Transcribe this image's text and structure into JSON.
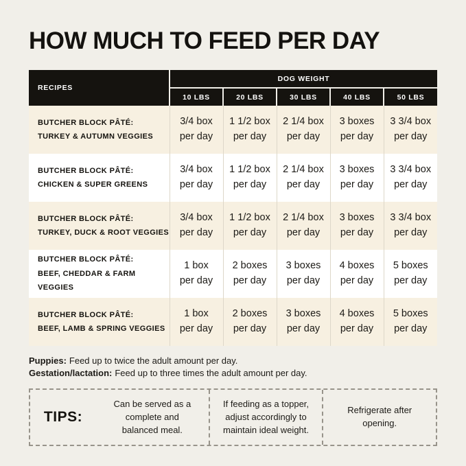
{
  "title": "HOW MUCH TO FEED PER DAY",
  "table": {
    "recipes_header": "RECIPES",
    "dog_weight_header": "DOG WEIGHT",
    "weights": [
      "10 LBS",
      "20 LBS",
      "30 LBS",
      "40 LBS",
      "50 LBS"
    ],
    "rows": [
      {
        "name1": "BUTCHER BLOCK PÂTÉ:",
        "name2": "TURKEY & AUTUMN VEGGIES",
        "cells": [
          {
            "a": "3/4 box",
            "b": "per day"
          },
          {
            "a": "1 1/2 box",
            "b": "per day"
          },
          {
            "a": "2 1/4 box",
            "b": "per day"
          },
          {
            "a": "3 boxes",
            "b": "per day"
          },
          {
            "a": "3 3/4 box",
            "b": "per day"
          }
        ]
      },
      {
        "name1": "BUTCHER BLOCK PÂTÉ:",
        "name2": "CHICKEN & SUPER GREENS",
        "cells": [
          {
            "a": "3/4 box",
            "b": "per day"
          },
          {
            "a": "1 1/2 box",
            "b": "per day"
          },
          {
            "a": "2 1/4 box",
            "b": "per day"
          },
          {
            "a": "3 boxes",
            "b": "per day"
          },
          {
            "a": "3 3/4 box",
            "b": "per day"
          }
        ]
      },
      {
        "name1": "BUTCHER BLOCK PÂTÉ:",
        "name2": "TURKEY, DUCK & ROOT VEGGIES",
        "cells": [
          {
            "a": "3/4 box",
            "b": "per day"
          },
          {
            "a": "1 1/2 box",
            "b": "per day"
          },
          {
            "a": "2 1/4 box",
            "b": "per day"
          },
          {
            "a": "3 boxes",
            "b": "per day"
          },
          {
            "a": "3 3/4 box",
            "b": "per day"
          }
        ]
      },
      {
        "name1": "BUTCHER BLOCK PÂTÉ:",
        "name2": "BEEF, CHEDDAR & FARM VEGGIES",
        "cells": [
          {
            "a": "1 box",
            "b": "per day"
          },
          {
            "a": "2 boxes",
            "b": "per day"
          },
          {
            "a": "3 boxes",
            "b": "per day"
          },
          {
            "a": "4 boxes",
            "b": "per day"
          },
          {
            "a": "5 boxes",
            "b": "per day"
          }
        ]
      },
      {
        "name1": "BUTCHER BLOCK PÂTÉ:",
        "name2": "BEEF, LAMB & SPRING VEGGIES",
        "cells": [
          {
            "a": "1 box",
            "b": "per day"
          },
          {
            "a": "2 boxes",
            "b": "per day"
          },
          {
            "a": "3 boxes",
            "b": "per day"
          },
          {
            "a": "4 boxes",
            "b": "per day"
          },
          {
            "a": "5 boxes",
            "b": "per day"
          }
        ]
      }
    ]
  },
  "notes": [
    {
      "label": "Puppies:",
      "text": "Feed up to twice the adult amount per day."
    },
    {
      "label": "Gestation/lactation:",
      "text": "Feed up to three times the adult amount per day."
    }
  ],
  "tips": {
    "label": "TIPS:",
    "items": [
      "Can be served as a complete and balanced meal.",
      "If feeding as a topper, adjust accordingly to maintain ideal weight.",
      "Refrigerate after opening."
    ]
  },
  "colors": {
    "background": "#f1efe9",
    "header_bar": "#15130f",
    "row_beige": "#f7f0e1",
    "row_white": "#ffffff",
    "text": "#1c1a16",
    "dashed_border": "#97938a"
  }
}
